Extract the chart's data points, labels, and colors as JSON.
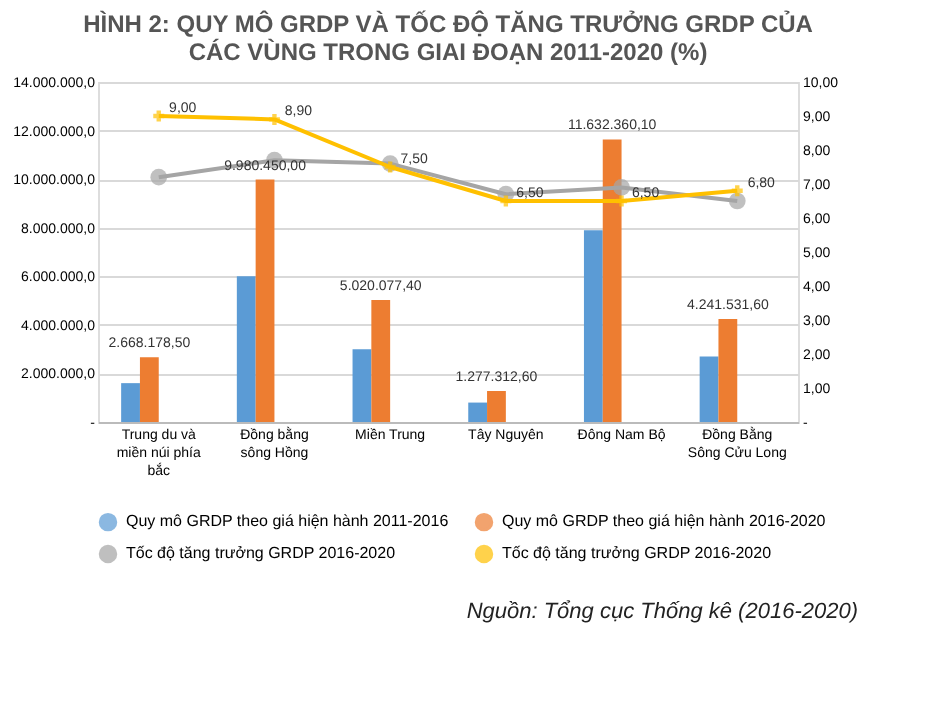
{
  "chart_data": {
    "type": "bar",
    "title": "HÌNH 2: QUY MÔ GRDP VÀ TỐC ĐỘ TĂNG TRƯỞNG GRDP CỦA CÁC VÙNG TRONG GIAI ĐOẠN 2011-2020 (%)",
    "categories": [
      "Trung du và miền núi phía bắc",
      "Đồng bằng sông Hồng",
      "Miền Trung",
      "Tây Nguyên",
      "Đông Nam Bộ",
      "Đồng Bằng Sông Cửu Long"
    ],
    "series": [
      {
        "name": "Quy mô GRDP theo giá hiện hành 2011-2016",
        "type": "bar",
        "color": "#5b9bd5",
        "values": [
          1600000,
          6000000,
          3000000,
          800000,
          7900000,
          2700000
        ]
      },
      {
        "name": "Quy mô GRDP theo giá hiện hành 2016-2020",
        "type": "bar",
        "color": "#ed7d31",
        "values": [
          2668178.5,
          9980450.0,
          5020077.4,
          1277312.6,
          11632360.1,
          4241531.6
        ],
        "value_labels": [
          "2.668.178,50",
          "9.980.450,00",
          "5.020.077,40",
          "1.277.312,60",
          "11.632.360,10",
          "4.241.531,60"
        ]
      },
      {
        "name": "Tốc độ tăng trưởng GRDP 2016-2020",
        "type": "line",
        "axis": "y2",
        "color": "#a5a5a5",
        "marker": "circle",
        "values": [
          7.2,
          7.7,
          7.6,
          6.7,
          6.9,
          6.5
        ]
      },
      {
        "name": "Tốc độ tăng trưởng GRDP 2016-2020",
        "type": "line",
        "axis": "y2",
        "color": "#ffc000",
        "marker": "cross",
        "values": [
          9.0,
          8.9,
          7.5,
          6.5,
          6.5,
          6.8
        ],
        "value_labels": [
          "9,00",
          "8,90",
          "7,50",
          "6,50",
          "6,50",
          "6,80"
        ]
      }
    ],
    "ylim": [
      0,
      14000000
    ],
    "yticks": [
      {
        "value": 0,
        "label": "-"
      },
      {
        "value": 2000000,
        "label": "2.000.000,0"
      },
      {
        "value": 4000000,
        "label": "4.000.000,0"
      },
      {
        "value": 6000000,
        "label": "6.000.000,0"
      },
      {
        "value": 8000000,
        "label": "8.000.000,0"
      },
      {
        "value": 10000000,
        "label": "10.000.000,0"
      },
      {
        "value": 12000000,
        "label": "12.000.000,0"
      },
      {
        "value": 14000000,
        "label": "14.000.000,0"
      }
    ],
    "y2lim": [
      0,
      10
    ],
    "y2ticks": [
      {
        "value": 0,
        "label": "-"
      },
      {
        "value": 1,
        "label": "1,00"
      },
      {
        "value": 2,
        "label": "2,00"
      },
      {
        "value": 3,
        "label": "3,00"
      },
      {
        "value": 4,
        "label": "4,00"
      },
      {
        "value": 5,
        "label": "5,00"
      },
      {
        "value": 6,
        "label": "6,00"
      },
      {
        "value": 7,
        "label": "7,00"
      },
      {
        "value": 8,
        "label": "8,00"
      },
      {
        "value": 9,
        "label": "9,00"
      },
      {
        "value": 10,
        "label": "10,00"
      }
    ],
    "grid": "y",
    "legend": "bottom",
    "line_style": "solid",
    "annotations": [
      "Nguồn: Tổng cục Thống kê (2016-2020)"
    ]
  }
}
